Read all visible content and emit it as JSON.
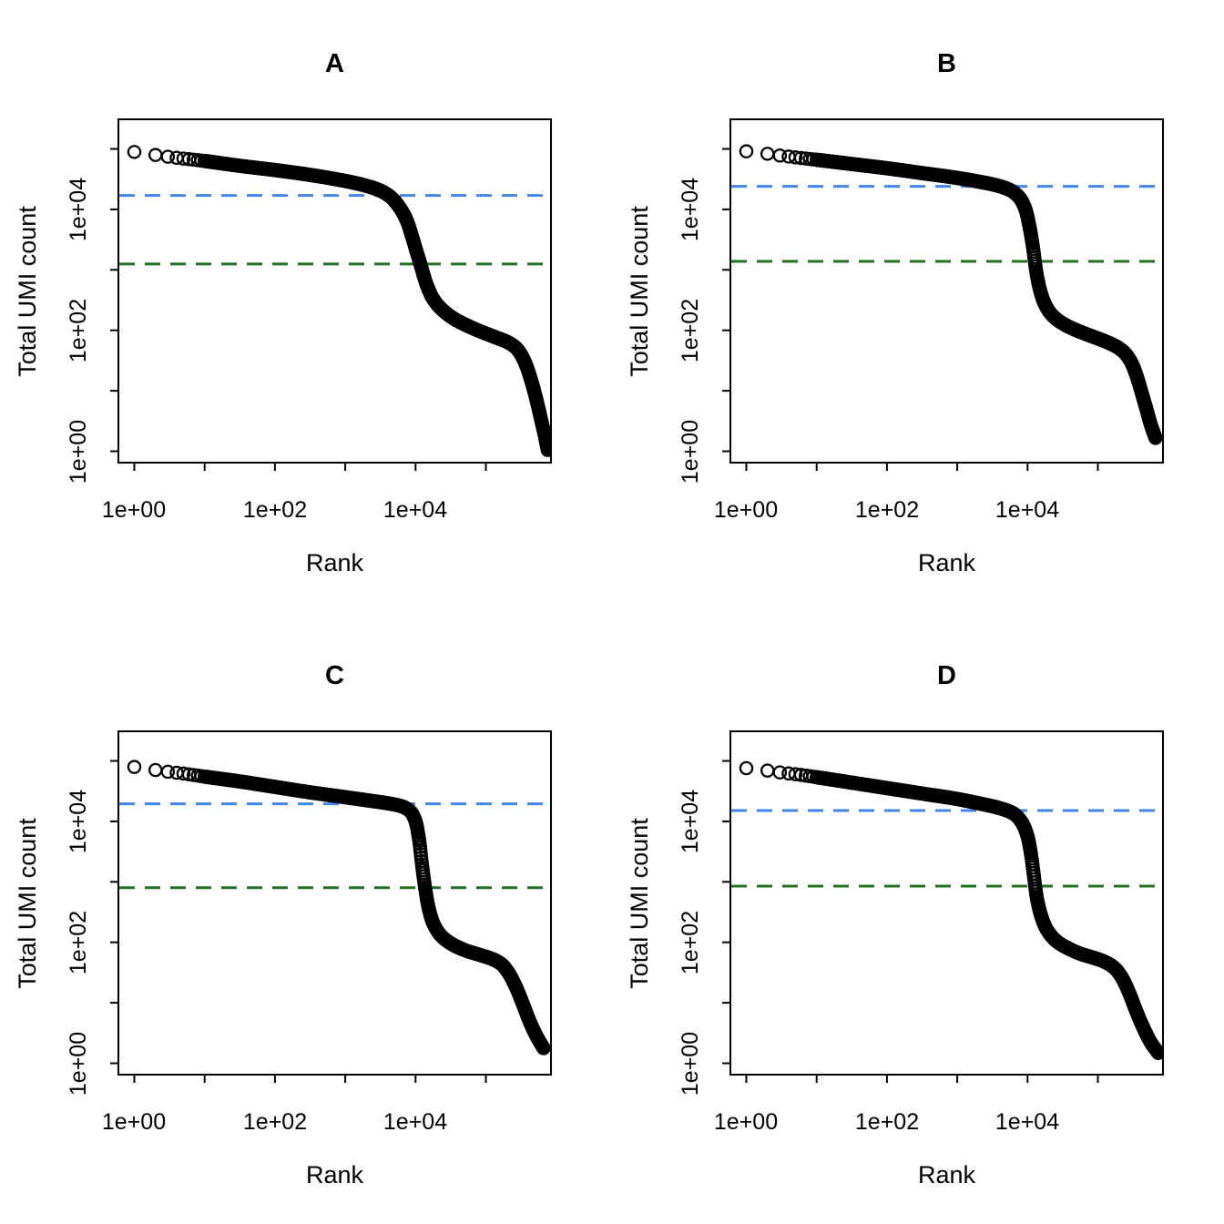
{
  "figure": {
    "background": "#ffffff",
    "layout": "2x2-grid"
  },
  "chart_data": [
    {
      "id": "A",
      "type": "scatter",
      "title": "A",
      "xlabel": "Rank",
      "ylabel": "Total UMI count",
      "x_scale": "log10",
      "y_scale": "log10",
      "x_tick_labels": [
        "1e+00",
        "1e+02",
        "1e+04"
      ],
      "y_tick_labels": [
        "1e+04",
        "1e+02",
        "1e+00"
      ],
      "x_ticks_log10": [
        0,
        1,
        2,
        3,
        4,
        5
      ],
      "y_ticks_log10": [
        5,
        4,
        3,
        2,
        1,
        0
      ],
      "x_labeled_ticks_log10": [
        0,
        2,
        4
      ],
      "y_labeled_ticks_log10": [
        4,
        2,
        0
      ],
      "xlim_log10": [
        -0.23,
        5.93
      ],
      "ylim_log10": [
        -0.19,
        5.49
      ],
      "grid": false,
      "marker": {
        "shape": "open-circle",
        "color": "#000000"
      },
      "knee_line": {
        "value": 17000,
        "color": "#3D85F2",
        "style": "dashed"
      },
      "inflection_line": {
        "value": 1250,
        "color": "#1E741E",
        "style": "dashed"
      },
      "curve_loglog": [
        [
          0,
          4.95
        ],
        [
          0.3,
          4.9
        ],
        [
          0.48,
          4.87
        ],
        [
          0.7,
          4.84
        ],
        [
          1.0,
          4.8
        ],
        [
          1.5,
          4.72
        ],
        [
          2.0,
          4.65
        ],
        [
          2.5,
          4.57
        ],
        [
          3.0,
          4.47
        ],
        [
          3.3,
          4.39
        ],
        [
          3.5,
          4.31
        ],
        [
          3.65,
          4.2
        ],
        [
          3.78,
          4.02
        ],
        [
          3.88,
          3.8
        ],
        [
          3.95,
          3.55
        ],
        [
          4.02,
          3.28
        ],
        [
          4.08,
          3.05
        ],
        [
          4.15,
          2.78
        ],
        [
          4.25,
          2.52
        ],
        [
          4.38,
          2.34
        ],
        [
          4.55,
          2.19
        ],
        [
          4.75,
          2.07
        ],
        [
          4.95,
          1.97
        ],
        [
          5.15,
          1.88
        ],
        [
          5.3,
          1.81
        ],
        [
          5.42,
          1.72
        ],
        [
          5.5,
          1.6
        ],
        [
          5.58,
          1.4
        ],
        [
          5.65,
          1.15
        ],
        [
          5.72,
          0.85
        ],
        [
          5.78,
          0.55
        ],
        [
          5.83,
          0.3
        ],
        [
          5.88,
          0.02
        ]
      ]
    },
    {
      "id": "B",
      "type": "scatter",
      "title": "B",
      "xlabel": "Rank",
      "ylabel": "Total UMI count",
      "x_scale": "log10",
      "y_scale": "log10",
      "x_tick_labels": [
        "1e+00",
        "1e+02",
        "1e+04"
      ],
      "y_tick_labels": [
        "1e+04",
        "1e+02",
        "1e+00"
      ],
      "x_ticks_log10": [
        0,
        1,
        2,
        3,
        4,
        5
      ],
      "y_ticks_log10": [
        5,
        4,
        3,
        2,
        1,
        0
      ],
      "x_labeled_ticks_log10": [
        0,
        2,
        4
      ],
      "y_labeled_ticks_log10": [
        4,
        2,
        0
      ],
      "xlim_log10": [
        -0.23,
        5.93
      ],
      "ylim_log10": [
        -0.19,
        5.49
      ],
      "grid": false,
      "marker": {
        "shape": "open-circle",
        "color": "#000000"
      },
      "knee_line": {
        "value": 24000,
        "color": "#3D85F2",
        "style": "dashed"
      },
      "inflection_line": {
        "value": 1380,
        "color": "#1E741E",
        "style": "dashed"
      },
      "curve_loglog": [
        [
          0,
          4.96
        ],
        [
          0.3,
          4.92
        ],
        [
          0.48,
          4.89
        ],
        [
          0.7,
          4.86
        ],
        [
          1.0,
          4.82
        ],
        [
          1.5,
          4.75
        ],
        [
          2.0,
          4.68
        ],
        [
          2.5,
          4.6
        ],
        [
          3.0,
          4.52
        ],
        [
          3.3,
          4.46
        ],
        [
          3.55,
          4.4
        ],
        [
          3.75,
          4.32
        ],
        [
          3.88,
          4.2
        ],
        [
          3.97,
          4.0
        ],
        [
          4.03,
          3.7
        ],
        [
          4.08,
          3.35
        ],
        [
          4.12,
          3.0
        ],
        [
          4.17,
          2.7
        ],
        [
          4.24,
          2.45
        ],
        [
          4.35,
          2.25
        ],
        [
          4.52,
          2.1
        ],
        [
          4.72,
          1.99
        ],
        [
          4.92,
          1.9
        ],
        [
          5.1,
          1.82
        ],
        [
          5.25,
          1.74
        ],
        [
          5.37,
          1.64
        ],
        [
          5.47,
          1.48
        ],
        [
          5.55,
          1.25
        ],
        [
          5.62,
          0.98
        ],
        [
          5.69,
          0.7
        ],
        [
          5.75,
          0.45
        ],
        [
          5.82,
          0.22
        ]
      ]
    },
    {
      "id": "C",
      "type": "scatter",
      "title": "C",
      "xlabel": "Rank",
      "ylabel": "Total UMI count",
      "x_scale": "log10",
      "y_scale": "log10",
      "x_tick_labels": [
        "1e+00",
        "1e+02",
        "1e+04"
      ],
      "y_tick_labels": [
        "1e+04",
        "1e+02",
        "1e+00"
      ],
      "x_ticks_log10": [
        0,
        1,
        2,
        3,
        4,
        5
      ],
      "y_ticks_log10": [
        5,
        4,
        3,
        2,
        1,
        0
      ],
      "x_labeled_ticks_log10": [
        0,
        2,
        4
      ],
      "y_labeled_ticks_log10": [
        4,
        2,
        0
      ],
      "xlim_log10": [
        -0.23,
        5.93
      ],
      "ylim_log10": [
        -0.19,
        5.49
      ],
      "grid": false,
      "marker": {
        "shape": "open-circle",
        "color": "#000000"
      },
      "knee_line": {
        "value": 19500,
        "color": "#3D85F2",
        "style": "dashed"
      },
      "inflection_line": {
        "value": 800,
        "color": "#1E741E",
        "style": "dashed"
      },
      "curve_loglog": [
        [
          0,
          4.9
        ],
        [
          0.3,
          4.85
        ],
        [
          0.48,
          4.82
        ],
        [
          0.7,
          4.79
        ],
        [
          1.0,
          4.74
        ],
        [
          1.5,
          4.66
        ],
        [
          2.0,
          4.57
        ],
        [
          2.5,
          4.48
        ],
        [
          3.0,
          4.4
        ],
        [
          3.3,
          4.35
        ],
        [
          3.6,
          4.3
        ],
        [
          3.8,
          4.25
        ],
        [
          3.93,
          4.16
        ],
        [
          4.0,
          4.0
        ],
        [
          4.05,
          3.7
        ],
        [
          4.09,
          3.3
        ],
        [
          4.13,
          2.95
        ],
        [
          4.18,
          2.6
        ],
        [
          4.25,
          2.32
        ],
        [
          4.37,
          2.1
        ],
        [
          4.55,
          1.95
        ],
        [
          4.75,
          1.85
        ],
        [
          4.95,
          1.78
        ],
        [
          5.1,
          1.72
        ],
        [
          5.22,
          1.64
        ],
        [
          5.32,
          1.5
        ],
        [
          5.42,
          1.28
        ],
        [
          5.52,
          1.0
        ],
        [
          5.62,
          0.7
        ],
        [
          5.72,
          0.45
        ],
        [
          5.82,
          0.25
        ]
      ]
    },
    {
      "id": "D",
      "type": "scatter",
      "title": "D",
      "xlabel": "Rank",
      "ylabel": "Total UMI count",
      "x_scale": "log10",
      "y_scale": "log10",
      "x_tick_labels": [
        "1e+00",
        "1e+02",
        "1e+04"
      ],
      "y_tick_labels": [
        "1e+04",
        "1e+02",
        "1e+00"
      ],
      "x_ticks_log10": [
        0,
        1,
        2,
        3,
        4,
        5
      ],
      "y_ticks_log10": [
        5,
        4,
        3,
        2,
        1,
        0
      ],
      "x_labeled_ticks_log10": [
        0,
        2,
        4
      ],
      "y_labeled_ticks_log10": [
        4,
        2,
        0
      ],
      "xlim_log10": [
        -0.23,
        5.93
      ],
      "ylim_log10": [
        -0.19,
        5.49
      ],
      "grid": false,
      "marker": {
        "shape": "open-circle",
        "color": "#000000"
      },
      "knee_line": {
        "value": 15100,
        "color": "#3D85F2",
        "style": "dashed"
      },
      "inflection_line": {
        "value": 850,
        "color": "#1E741E",
        "style": "dashed"
      },
      "curve_loglog": [
        [
          0,
          4.88
        ],
        [
          0.3,
          4.84
        ],
        [
          0.48,
          4.81
        ],
        [
          0.7,
          4.78
        ],
        [
          1.0,
          4.73
        ],
        [
          1.5,
          4.64
        ],
        [
          2.0,
          4.55
        ],
        [
          2.5,
          4.46
        ],
        [
          3.0,
          4.37
        ],
        [
          3.3,
          4.3
        ],
        [
          3.6,
          4.22
        ],
        [
          3.8,
          4.13
        ],
        [
          3.92,
          3.98
        ],
        [
          4.0,
          3.75
        ],
        [
          4.05,
          3.45
        ],
        [
          4.09,
          3.1
        ],
        [
          4.13,
          2.75
        ],
        [
          4.19,
          2.45
        ],
        [
          4.27,
          2.22
        ],
        [
          4.4,
          2.03
        ],
        [
          4.58,
          1.9
        ],
        [
          4.78,
          1.8
        ],
        [
          4.98,
          1.73
        ],
        [
          5.13,
          1.66
        ],
        [
          5.25,
          1.56
        ],
        [
          5.35,
          1.4
        ],
        [
          5.45,
          1.15
        ],
        [
          5.55,
          0.85
        ],
        [
          5.65,
          0.58
        ],
        [
          5.75,
          0.35
        ],
        [
          5.86,
          0.17
        ]
      ]
    }
  ]
}
